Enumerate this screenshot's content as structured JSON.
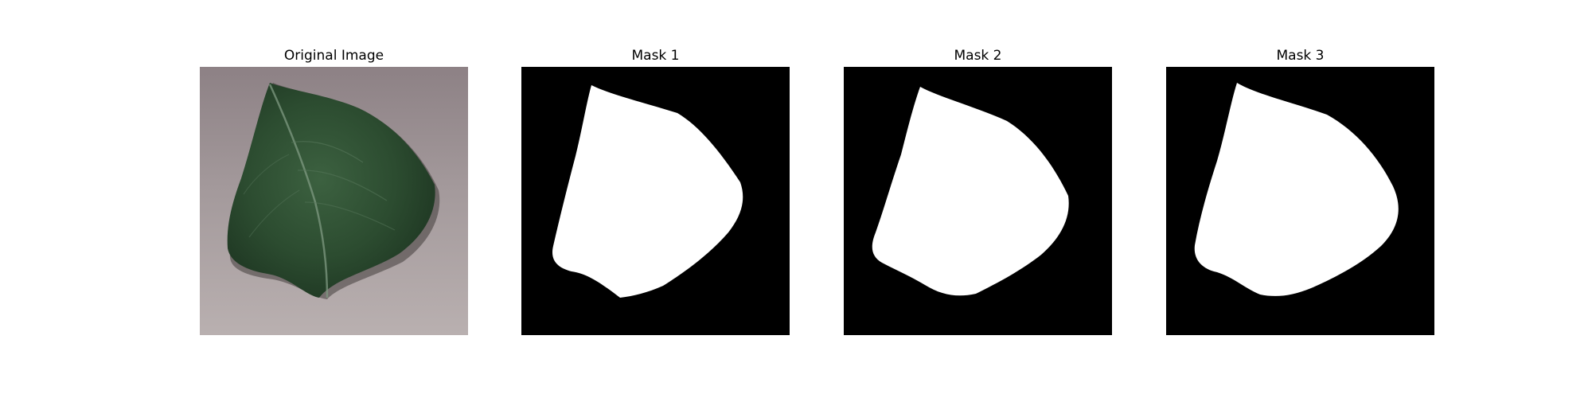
{
  "panels": [
    {
      "title": "Original Image",
      "kind": "photo"
    },
    {
      "title": "Mask 1",
      "kind": "mask"
    },
    {
      "title": "Mask 2",
      "kind": "mask"
    },
    {
      "title": "Mask 3",
      "kind": "mask"
    }
  ],
  "colors": {
    "background": "#ffffff",
    "mask_background": "#000000",
    "mask_foreground": "#ffffff",
    "leaf_dark": "#1f3a22",
    "leaf_mid": "#335a36",
    "surface_top": "#8d8185",
    "surface_bottom": "#b9b0b0"
  }
}
